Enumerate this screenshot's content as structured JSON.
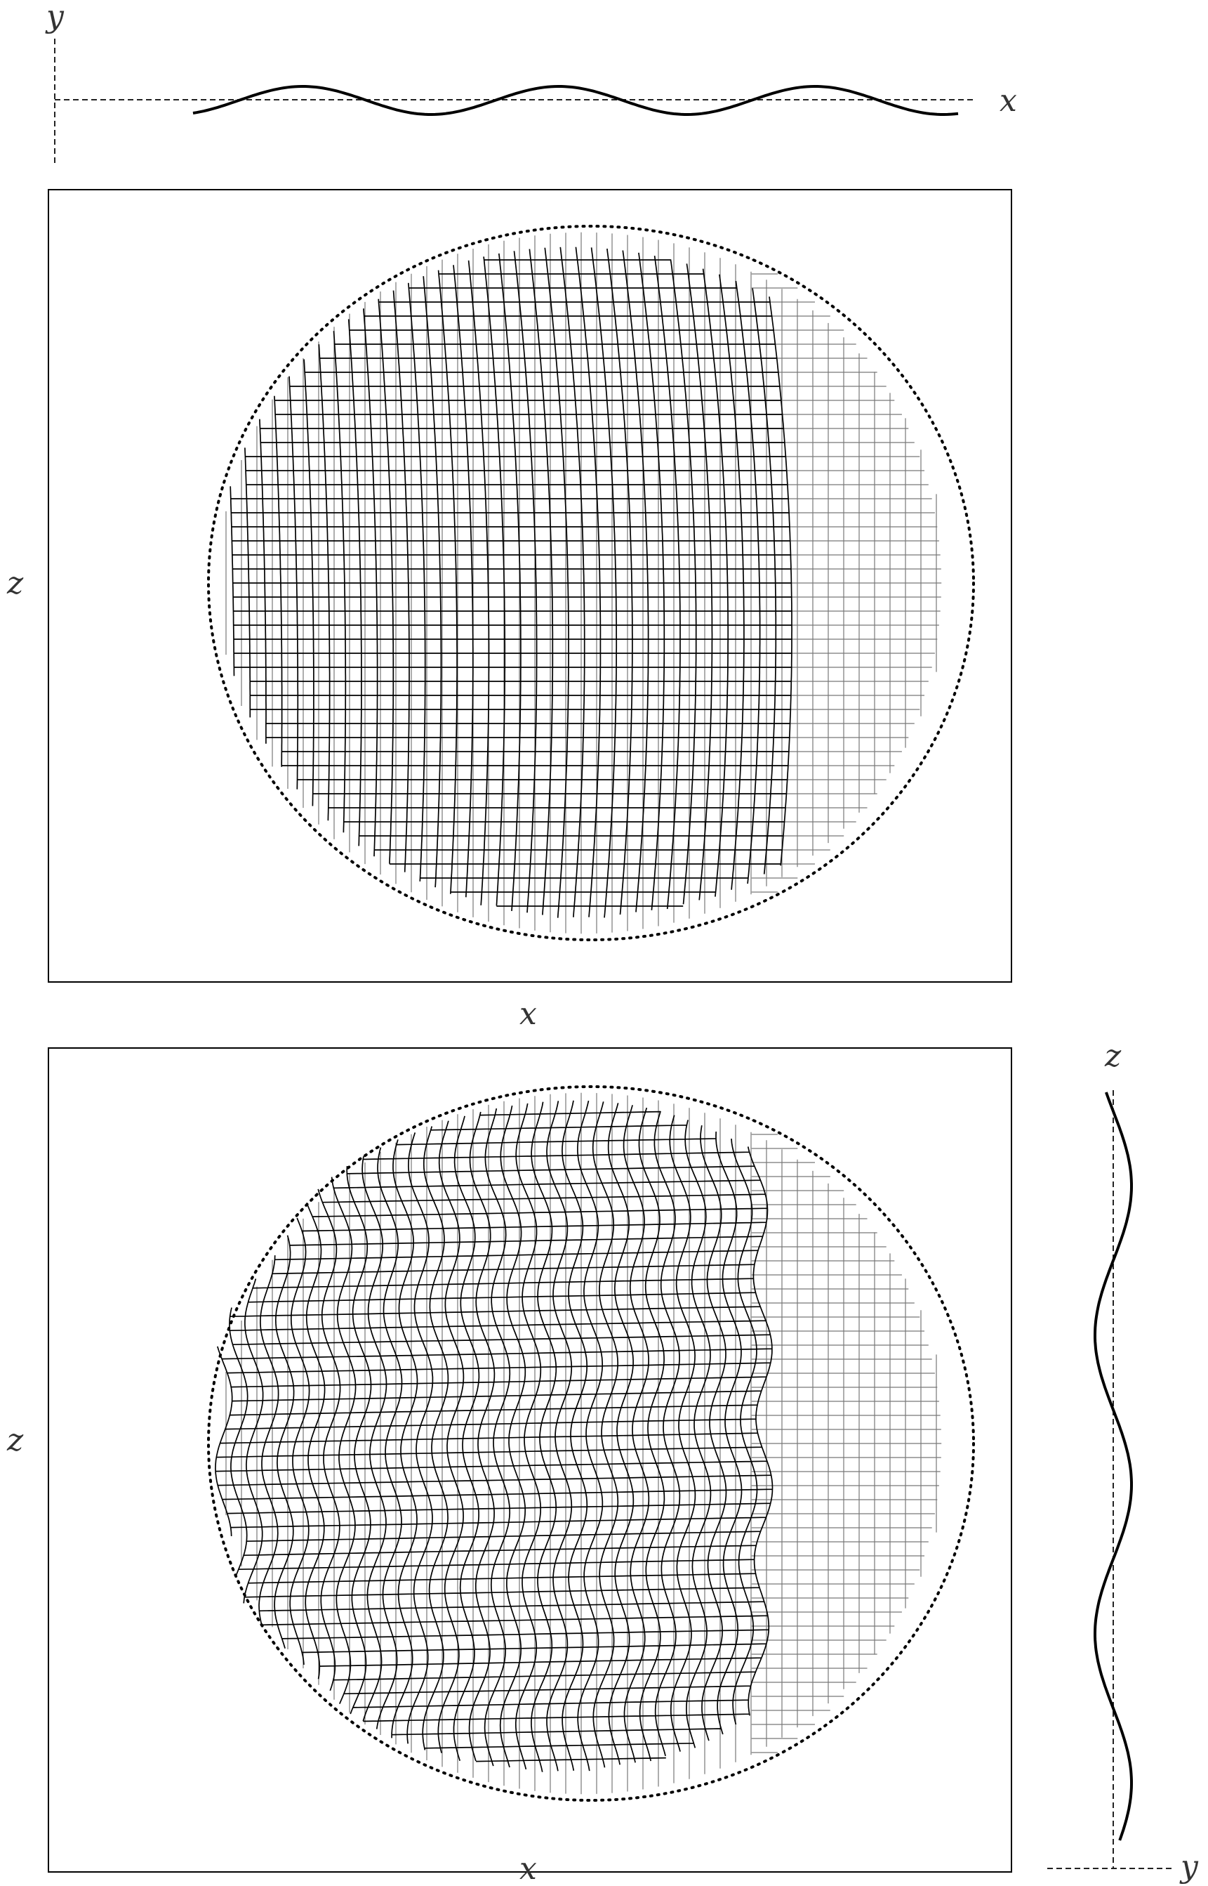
{
  "top_inset": {
    "axis_y_label": "y",
    "axis_x_label": "x"
  },
  "panel_top": {
    "xlabel": "x",
    "zlabel": "z"
  },
  "panel_bottom": {
    "xlabel": "x",
    "zlabel": "z"
  },
  "side_inset": {
    "axis_z_label": "z",
    "axis_y_label": "y"
  },
  "colors": {
    "lines": "#000000",
    "labels": "#333333",
    "faint_grid": "#777777"
  }
}
